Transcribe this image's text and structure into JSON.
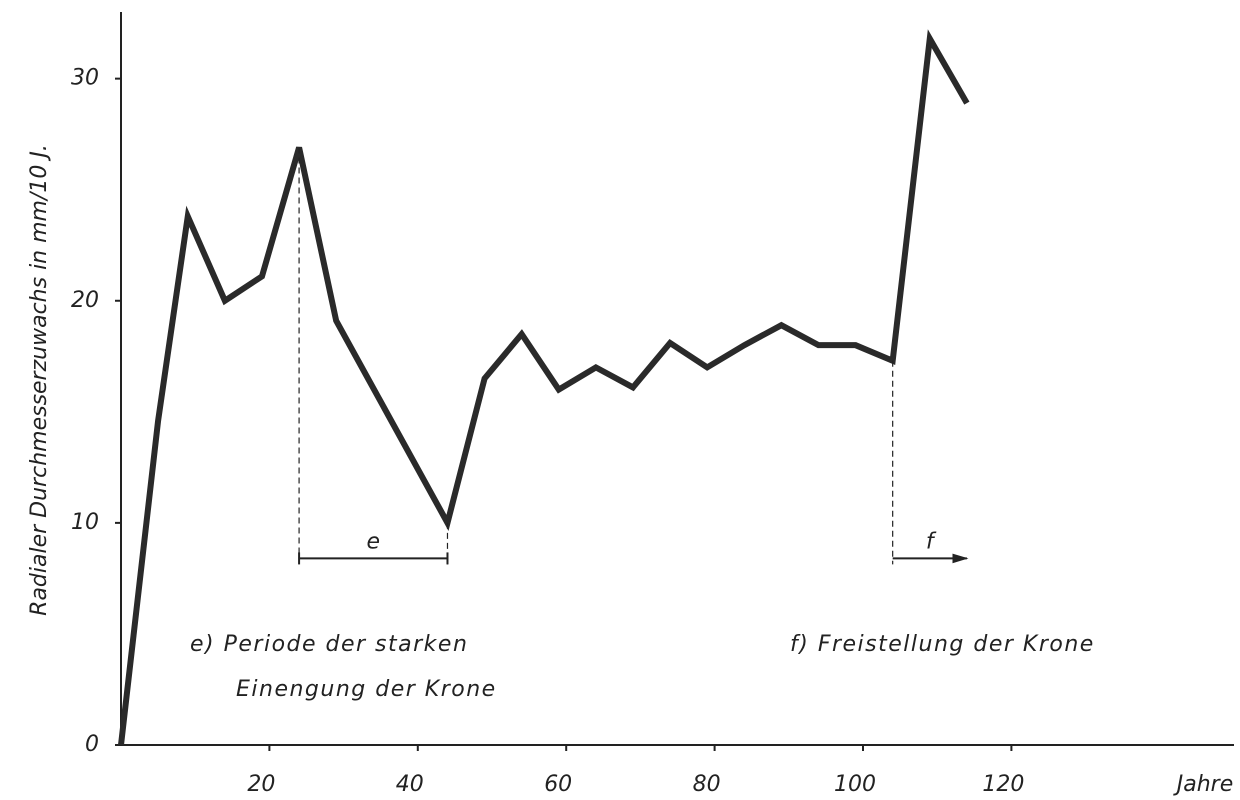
{
  "chart_data": {
    "type": "line",
    "y_label": "Radialer Durchmesserzuwachs in mm/10 J.",
    "x_label": "Jahre",
    "x": [
      0,
      5,
      9,
      14,
      19,
      24,
      29,
      44,
      49,
      54,
      59,
      64,
      69,
      74,
      79,
      84,
      89,
      94,
      99,
      104,
      109,
      114
    ],
    "series": [
      {
        "color": "#2a2a2a",
        "values": [
          0,
          14.6,
          23.8,
          20.0,
          21.1,
          26.9,
          19.1,
          10.0,
          16.5,
          18.5,
          16.0,
          17.0,
          16.1,
          18.1,
          17.0,
          18.0,
          18.9,
          18.0,
          18.0,
          17.3,
          31.8,
          28.9
        ]
      }
    ],
    "xlim": [
      0,
      150
    ],
    "ylim": [
      0,
      33
    ],
    "xticks": [
      20,
      40,
      60,
      80,
      100,
      120
    ],
    "yticks": [
      0,
      10,
      20,
      30
    ],
    "annotations": [
      {
        "label": "e",
        "x": [
          24,
          44
        ],
        "y": 8.4,
        "note": [
          "e) Periode der starken",
          "Einengung der Krone"
        ]
      },
      {
        "label": "f",
        "x": [
          104,
          114
        ],
        "y": 8.4,
        "note": [
          "f) Freistellung der Krone"
        ]
      }
    ]
  }
}
